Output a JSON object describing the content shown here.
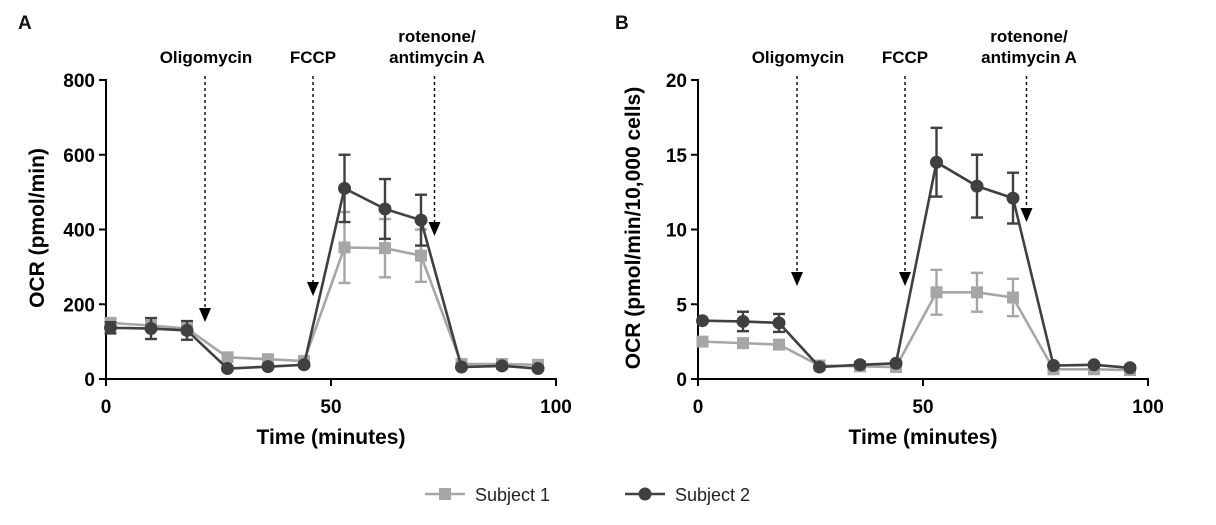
{
  "legend": {
    "position": "bottom-center",
    "items": [
      {
        "label": "Subject 1",
        "marker": "square",
        "color": "#a6a6a6"
      },
      {
        "label": "Subject 2",
        "marker": "circle",
        "color": "#404040"
      }
    ]
  },
  "chart_data": [
    {
      "panel_label": "A",
      "type": "line",
      "xlabel": "Time (minutes)",
      "ylabel": "OCR (pmol/min)",
      "xlim": [
        0,
        100
      ],
      "ylim": [
        0,
        800
      ],
      "xticks": [
        0,
        50,
        100
      ],
      "yticks": [
        0,
        200,
        400,
        600,
        800
      ],
      "grid": false,
      "annotations": [
        {
          "lines": [
            "Oligomycin"
          ],
          "x": 22
        },
        {
          "lines": [
            "FCCP"
          ],
          "x": 46
        },
        {
          "lines": [
            "rotenone/",
            "antimycin A"
          ],
          "x": 73
        }
      ],
      "series": [
        {
          "name": "Subject 1",
          "marker": "square",
          "color": "#a6a6a6",
          "x": [
            1,
            10,
            18,
            27,
            36,
            44,
            53,
            62,
            70,
            79,
            88,
            96
          ],
          "y": [
            150,
            143,
            135,
            58,
            53,
            48,
            352,
            350,
            330,
            40,
            40,
            38
          ],
          "err": [
            8,
            10,
            10,
            6,
            5,
            5,
            95,
            78,
            70,
            5,
            5,
            5
          ]
        },
        {
          "name": "Subject 2",
          "marker": "circle",
          "color": "#404040",
          "x": [
            1,
            10,
            18,
            27,
            36,
            44,
            53,
            62,
            70,
            79,
            88,
            96
          ],
          "y": [
            137,
            135,
            130,
            28,
            33,
            38,
            510,
            455,
            425,
            32,
            35,
            28
          ],
          "err": [
            15,
            28,
            25,
            5,
            5,
            5,
            90,
            80,
            68,
            5,
            5,
            5
          ]
        }
      ]
    },
    {
      "panel_label": "B",
      "type": "line",
      "xlabel": "Time (minutes)",
      "ylabel": "OCR (pmol/min/10,000 cells)",
      "xlim": [
        0,
        100
      ],
      "ylim": [
        0,
        20
      ],
      "xticks": [
        0,
        50,
        100
      ],
      "yticks": [
        0,
        5,
        10,
        15,
        20
      ],
      "grid": false,
      "annotations": [
        {
          "lines": [
            "Oligomycin"
          ],
          "x": 22
        },
        {
          "lines": [
            "FCCP"
          ],
          "x": 46
        },
        {
          "lines": [
            "rotenone/",
            "antimycin A"
          ],
          "x": 73
        }
      ],
      "series": [
        {
          "name": "Subject 1",
          "marker": "square",
          "color": "#a6a6a6",
          "x": [
            1,
            10,
            18,
            27,
            36,
            44,
            53,
            62,
            70,
            79,
            88,
            96
          ],
          "y": [
            2.5,
            2.4,
            2.3,
            0.9,
            0.85,
            0.8,
            5.8,
            5.8,
            5.45,
            0.65,
            0.65,
            0.6
          ],
          "err": [
            0.1,
            0.1,
            0.1,
            0.1,
            0.1,
            0.1,
            1.5,
            1.3,
            1.25,
            0.1,
            0.1,
            0.1
          ]
        },
        {
          "name": "Subject 2",
          "marker": "circle",
          "color": "#404040",
          "x": [
            1,
            10,
            18,
            27,
            36,
            44,
            53,
            62,
            70,
            79,
            88,
            96
          ],
          "y": [
            3.9,
            3.85,
            3.75,
            0.8,
            0.95,
            1.05,
            14.5,
            12.9,
            12.1,
            0.9,
            0.95,
            0.75
          ],
          "err": [
            0.1,
            0.65,
            0.6,
            0.1,
            0.1,
            0.1,
            2.3,
            2.1,
            1.7,
            0.1,
            0.1,
            0.1
          ]
        }
      ]
    }
  ]
}
